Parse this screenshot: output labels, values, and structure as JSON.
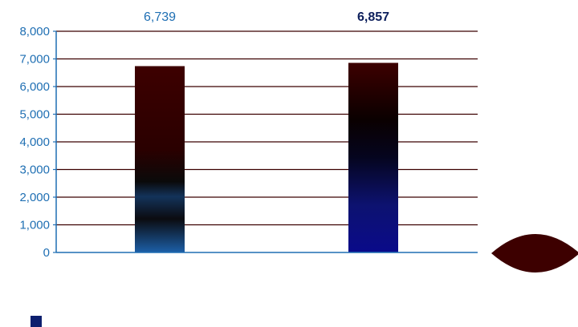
{
  "chart_data": {
    "type": "bar",
    "categories": [
      "",
      ""
    ],
    "values": [
      6739,
      6857
    ],
    "value_labels": [
      "6,739",
      "6,857"
    ],
    "ylim": [
      0,
      8000
    ],
    "yticks": [
      0,
      1000,
      2000,
      3000,
      4000,
      5000,
      6000,
      7000,
      8000
    ],
    "ytick_labels": [
      "0",
      "1,000",
      "2,000",
      "3,000",
      "4,000",
      "5,000",
      "6,000",
      "7,000",
      "8,000"
    ],
    "grid": true,
    "legend": "bottom-left",
    "colors": {
      "axis": "#1f6fb3",
      "gridline": "#3b0000",
      "bar_top": "#3d0000",
      "bar1_bottom": "#1c5fa8",
      "bar2_bottom": "#0a0a7a",
      "label_regular": "#1f6fb3",
      "label_bold": "#0d1f5c",
      "legend_swatch": "#0d1f6e",
      "decor_shape": "#3d0000"
    }
  }
}
